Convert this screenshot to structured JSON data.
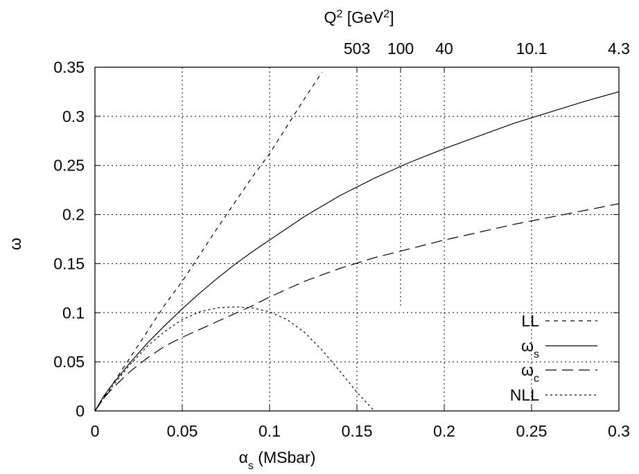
{
  "chart_data": {
    "type": "line",
    "xlabel": {
      "main": "α",
      "sub": "s",
      "rest": " (MSbar)"
    },
    "ylabel": "ω",
    "top_axis_label": {
      "main": "Q",
      "sup1": "2",
      "mid": " [GeV",
      "sup2": "2",
      "end": "]"
    },
    "xlim": [
      0,
      0.3
    ],
    "ylim": [
      0,
      0.35
    ],
    "grid": true,
    "legend_position": "bottom-right",
    "x_ticks": [
      {
        "value": 0,
        "label": "0"
      },
      {
        "value": 0.05,
        "label": "0.05"
      },
      {
        "value": 0.1,
        "label": "0.1"
      },
      {
        "value": 0.15,
        "label": "0.15"
      },
      {
        "value": 0.2,
        "label": "0.2"
      },
      {
        "value": 0.25,
        "label": "0.25"
      },
      {
        "value": 0.3,
        "label": "0.3"
      }
    ],
    "y_ticks": [
      {
        "value": 0,
        "label": "0"
      },
      {
        "value": 0.05,
        "label": "0.05"
      },
      {
        "value": 0.1,
        "label": "0.1"
      },
      {
        "value": 0.15,
        "label": "0.15"
      },
      {
        "value": 0.2,
        "label": "0.2"
      },
      {
        "value": 0.25,
        "label": "0.25"
      },
      {
        "value": 0.3,
        "label": "0.3"
      },
      {
        "value": 0.35,
        "label": "0.35"
      }
    ],
    "top_ticks": [
      {
        "alpha": 0.15,
        "label": "503"
      },
      {
        "alpha": 0.175,
        "label": "100"
      },
      {
        "alpha": 0.2,
        "label": "40"
      },
      {
        "alpha": 0.25,
        "label": "10.1"
      },
      {
        "alpha": 0.3,
        "label": "4.3"
      }
    ],
    "series": [
      {
        "name": "LL",
        "name_main": "LL",
        "name_sub": "",
        "dash": "6,6",
        "x": [
          0,
          0.01,
          0.02,
          0.03,
          0.04,
          0.05,
          0.06,
          0.07,
          0.08,
          0.09,
          0.1,
          0.11,
          0.12,
          0.13
        ],
        "y": [
          0,
          0.027,
          0.054,
          0.081,
          0.108,
          0.132,
          0.159,
          0.186,
          0.212,
          0.238,
          0.262,
          0.29,
          0.318,
          0.345
        ]
      },
      {
        "name": "ωs",
        "name_main": "ω",
        "name_sub": "s",
        "dash": "",
        "x": [
          0,
          0.005,
          0.01,
          0.02,
          0.03,
          0.04,
          0.05,
          0.06,
          0.07,
          0.08,
          0.09,
          0.1,
          0.12,
          0.14,
          0.16,
          0.18,
          0.2,
          0.22,
          0.24,
          0.26,
          0.28,
          0.3
        ],
        "y": [
          0,
          0.015,
          0.027,
          0.049,
          0.069,
          0.087,
          0.104,
          0.12,
          0.135,
          0.149,
          0.162,
          0.174,
          0.198,
          0.219,
          0.237,
          0.253,
          0.267,
          0.28,
          0.293,
          0.304,
          0.315,
          0.325
        ]
      },
      {
        "name": "ωc",
        "name_main": "ω",
        "name_sub": "c",
        "dash": "16,8",
        "x": [
          0,
          0.005,
          0.01,
          0.02,
          0.03,
          0.04,
          0.05,
          0.06,
          0.07,
          0.08,
          0.09,
          0.1,
          0.12,
          0.14,
          0.16,
          0.18,
          0.2,
          0.22,
          0.24,
          0.26,
          0.28,
          0.3
        ],
        "y": [
          0,
          0.013,
          0.023,
          0.04,
          0.054,
          0.066,
          0.075,
          0.083,
          0.091,
          0.099,
          0.107,
          0.116,
          0.132,
          0.145,
          0.156,
          0.165,
          0.174,
          0.182,
          0.19,
          0.197,
          0.204,
          0.211
        ]
      },
      {
        "name": "NLL",
        "name_main": "NLL",
        "name_sub": "",
        "dash": "3,4",
        "x": [
          0,
          0.01,
          0.02,
          0.03,
          0.04,
          0.05,
          0.06,
          0.07,
          0.08,
          0.09,
          0.1,
          0.11,
          0.12,
          0.13,
          0.14,
          0.15,
          0.16
        ],
        "y": [
          0,
          0.025,
          0.047,
          0.066,
          0.081,
          0.093,
          0.101,
          0.105,
          0.106,
          0.105,
          0.101,
          0.093,
          0.08,
          0.062,
          0.041,
          0.019,
          0
        ]
      }
    ]
  }
}
